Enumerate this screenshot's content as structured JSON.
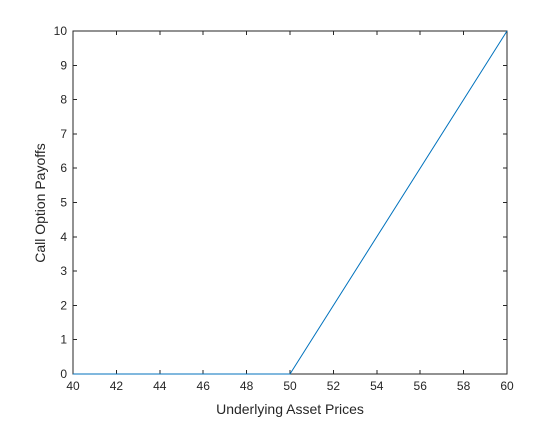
{
  "chart_data": {
    "type": "line",
    "title": "",
    "xlabel": "Underlying Asset Prices",
    "ylabel": "Call Option Payoffs",
    "xlim": [
      40,
      60
    ],
    "ylim": [
      0,
      10
    ],
    "x_ticks": [
      40,
      42,
      44,
      46,
      48,
      50,
      52,
      54,
      56,
      58,
      60
    ],
    "y_ticks": [
      0,
      1,
      2,
      3,
      4,
      5,
      6,
      7,
      8,
      9,
      10
    ],
    "grid": false,
    "legend": "none",
    "series": [
      {
        "color": "#0072bd",
        "x": [
          40,
          50,
          60
        ],
        "y": [
          0,
          0,
          10
        ]
      }
    ]
  }
}
